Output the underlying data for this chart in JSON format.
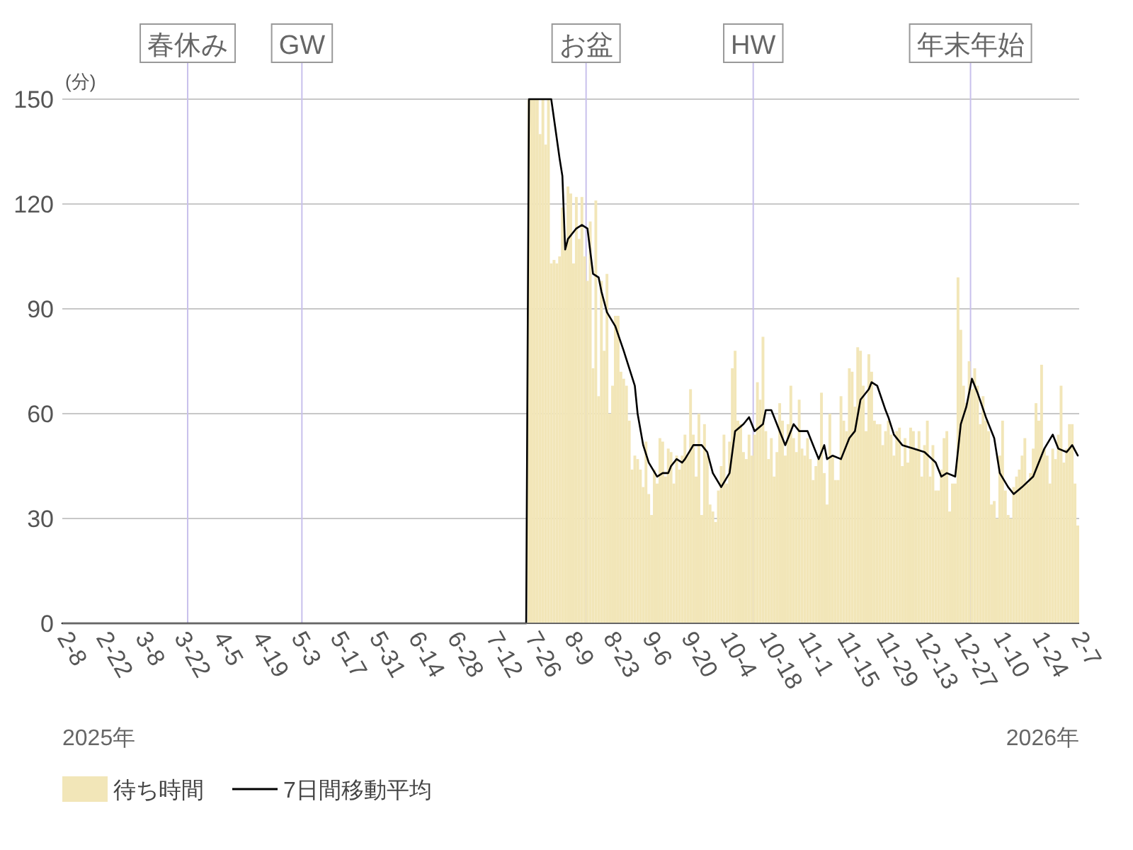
{
  "chart_data": {
    "type": "bar",
    "ylabel": "(分)",
    "xlim": [
      "2025-02-08",
      "2026-02-08"
    ],
    "ylim": [
      0,
      150
    ],
    "yticks": [
      0,
      30,
      60,
      90,
      120,
      150
    ],
    "xticks": [
      {
        "value": "2025-02-08",
        "label": "2-8"
      },
      {
        "value": "2025-02-22",
        "label": "2-22"
      },
      {
        "value": "2025-03-08",
        "label": "3-8"
      },
      {
        "value": "2025-03-22",
        "label": "3-22"
      },
      {
        "value": "2025-04-05",
        "label": "4-5"
      },
      {
        "value": "2025-04-19",
        "label": "4-19"
      },
      {
        "value": "2025-05-03",
        "label": "5-3"
      },
      {
        "value": "2025-05-17",
        "label": "5-17"
      },
      {
        "value": "2025-05-31",
        "label": "5-31"
      },
      {
        "value": "2025-06-14",
        "label": "6-14"
      },
      {
        "value": "2025-06-28",
        "label": "6-28"
      },
      {
        "value": "2025-07-12",
        "label": "7-12"
      },
      {
        "value": "2025-07-26",
        "label": "7-26"
      },
      {
        "value": "2025-08-09",
        "label": "8-9"
      },
      {
        "value": "2025-08-23",
        "label": "8-23"
      },
      {
        "value": "2025-09-06",
        "label": "9-6"
      },
      {
        "value": "2025-09-20",
        "label": "9-20"
      },
      {
        "value": "2025-10-04",
        "label": "10-4"
      },
      {
        "value": "2025-10-18",
        "label": "10-18"
      },
      {
        "value": "2025-11-01",
        "label": "11-1"
      },
      {
        "value": "2025-11-15",
        "label": "11-15"
      },
      {
        "value": "2025-11-29",
        "label": "11-29"
      },
      {
        "value": "2025-12-13",
        "label": "12-13"
      },
      {
        "value": "2025-12-27",
        "label": "12-27"
      },
      {
        "value": "2026-01-10",
        "label": "1-10"
      },
      {
        "value": "2026-01-24",
        "label": "1-24"
      },
      {
        "value": "2026-02-07",
        "label": "2-7"
      }
    ],
    "grid": "y",
    "legend": "bottom",
    "ref_lines": [
      {
        "axis": "x",
        "value": "2025-03-25",
        "label": "春休み",
        "color": "#c8c0ec"
      },
      {
        "axis": "x",
        "value": "2025-05-05",
        "label": "GW",
        "color": "#c8c0ec"
      },
      {
        "axis": "x",
        "value": "2025-08-15",
        "label": "お盆",
        "color": "#c8c0ec"
      },
      {
        "axis": "x",
        "value": "2025-10-14",
        "label": "HW",
        "color": "#c8c0ec"
      },
      {
        "axis": "x",
        "value": "2025-12-31",
        "label": "年末年始",
        "color": "#c8c0ec"
      }
    ],
    "annotations": [
      "2025年",
      "2026年"
    ],
    "series": [
      {
        "name": "待ち時間",
        "color": "#f2e6b8",
        "x": [
          "2025-07-25",
          "2025-07-26",
          "2025-07-27",
          "2025-07-28",
          "2025-07-29",
          "2025-07-30",
          "2025-07-31",
          "2025-08-01",
          "2025-08-02",
          "2025-08-03",
          "2025-08-04",
          "2025-08-05",
          "2025-08-06",
          "2025-08-07",
          "2025-08-08",
          "2025-08-09",
          "2025-08-10",
          "2025-08-11",
          "2025-08-12",
          "2025-08-13",
          "2025-08-14",
          "2025-08-15",
          "2025-08-16",
          "2025-08-17",
          "2025-08-18",
          "2025-08-19",
          "2025-08-20",
          "2025-08-21",
          "2025-08-22",
          "2025-08-23",
          "2025-08-24",
          "2025-08-25",
          "2025-08-26",
          "2025-08-27",
          "2025-08-28",
          "2025-08-29",
          "2025-08-30",
          "2025-08-31",
          "2025-09-01",
          "2025-09-02",
          "2025-09-03",
          "2025-09-04",
          "2025-09-05",
          "2025-09-06",
          "2025-09-07",
          "2025-09-08",
          "2025-09-09",
          "2025-09-10",
          "2025-09-11",
          "2025-09-12",
          "2025-09-13",
          "2025-09-14",
          "2025-09-15",
          "2025-09-16",
          "2025-09-17",
          "2025-09-18",
          "2025-09-19",
          "2025-09-20",
          "2025-09-21",
          "2025-09-22",
          "2025-09-23",
          "2025-09-24",
          "2025-09-25",
          "2025-09-26",
          "2025-09-27",
          "2025-09-28",
          "2025-09-29",
          "2025-09-30",
          "2025-10-01",
          "2025-10-02",
          "2025-10-03",
          "2025-10-04",
          "2025-10-05",
          "2025-10-06",
          "2025-10-07",
          "2025-10-08",
          "2025-10-09",
          "2025-10-10",
          "2025-10-11",
          "2025-10-12",
          "2025-10-13",
          "2025-10-14",
          "2025-10-15",
          "2025-10-16",
          "2025-10-17",
          "2025-10-18",
          "2025-10-19",
          "2025-10-20",
          "2025-10-21",
          "2025-10-22",
          "2025-10-23",
          "2025-10-24",
          "2025-10-25",
          "2025-10-26",
          "2025-10-27",
          "2025-10-28",
          "2025-10-29",
          "2025-10-30",
          "2025-10-31",
          "2025-11-01",
          "2025-11-02",
          "2025-11-03",
          "2025-11-04",
          "2025-11-05",
          "2025-11-06",
          "2025-11-07",
          "2025-11-08",
          "2025-11-09",
          "2025-11-10",
          "2025-11-11",
          "2025-11-12",
          "2025-11-13",
          "2025-11-14",
          "2025-11-15",
          "2025-11-16",
          "2025-11-17",
          "2025-11-18",
          "2025-11-19",
          "2025-11-20",
          "2025-11-21",
          "2025-11-22",
          "2025-11-23",
          "2025-11-24",
          "2025-11-25",
          "2025-11-26",
          "2025-11-27",
          "2025-11-28",
          "2025-11-29",
          "2025-11-30",
          "2025-12-01",
          "2025-12-02",
          "2025-12-03",
          "2025-12-04",
          "2025-12-05",
          "2025-12-06",
          "2025-12-07",
          "2025-12-08",
          "2025-12-09",
          "2025-12-10",
          "2025-12-11",
          "2025-12-12",
          "2025-12-13",
          "2025-12-14",
          "2025-12-15",
          "2025-12-16",
          "2025-12-17",
          "2025-12-18",
          "2025-12-19",
          "2025-12-20",
          "2025-12-21",
          "2025-12-22",
          "2025-12-23",
          "2025-12-24",
          "2025-12-25",
          "2025-12-26",
          "2025-12-27",
          "2025-12-28",
          "2025-12-29",
          "2025-12-30",
          "2025-12-31",
          "2026-01-01",
          "2026-01-02",
          "2026-01-03",
          "2026-01-04",
          "2026-01-05",
          "2026-01-06",
          "2026-01-07",
          "2026-01-08",
          "2026-01-09",
          "2026-01-10",
          "2026-01-11",
          "2026-01-12",
          "2026-01-13",
          "2026-01-14",
          "2026-01-15",
          "2026-01-16",
          "2026-01-17",
          "2026-01-18",
          "2026-01-19",
          "2026-01-20",
          "2026-01-21",
          "2026-01-22",
          "2026-01-23",
          "2026-01-24",
          "2026-01-25",
          "2026-01-26",
          "2026-01-27",
          "2026-01-28",
          "2026-01-29",
          "2026-01-30",
          "2026-01-31",
          "2026-02-01",
          "2026-02-02",
          "2026-02-03",
          "2026-02-04",
          "2026-02-05",
          "2026-02-06",
          "2026-02-07"
        ],
        "values": [
          150,
          150,
          150,
          150,
          140,
          150,
          137,
          150,
          103,
          104,
          103,
          105,
          119,
          107,
          125,
          123,
          103,
          122,
          110,
          122,
          105,
          98,
          115,
          73,
          121,
          65,
          98,
          78,
          100,
          60,
          68,
          88,
          88,
          72,
          70,
          68,
          58,
          44,
          48,
          47,
          44,
          39,
          52,
          37,
          31,
          44,
          40,
          53,
          52,
          42,
          50,
          49,
          40,
          48,
          44,
          48,
          54,
          48,
          67,
          54,
          42,
          60,
          31,
          57,
          48,
          34,
          32,
          29,
          38,
          45,
          54,
          40,
          52,
          73,
          78,
          58,
          57,
          49,
          47,
          54,
          48,
          54,
          69,
          64,
          82,
          55,
          47,
          53,
          42,
          49,
          63,
          58,
          48,
          57,
          68,
          53,
          49,
          64,
          50,
          48,
          53,
          47,
          41,
          45,
          47,
          66,
          43,
          34,
          60,
          48,
          41,
          41,
          65,
          58,
          55,
          73,
          72,
          62,
          79,
          78,
          68,
          55,
          77,
          72,
          58,
          57,
          57,
          51,
          55,
          58,
          54,
          48,
          55,
          56,
          45,
          53,
          46,
          56,
          55,
          50,
          55,
          42,
          51,
          58,
          42,
          51,
          38,
          38,
          44,
          53,
          55,
          32,
          40,
          40,
          99,
          84,
          68,
          63,
          75,
          67,
          73,
          68,
          57,
          65,
          58,
          55,
          34,
          35,
          30,
          48,
          58,
          38,
          31,
          30,
          39,
          42,
          44,
          48,
          53,
          40,
          43,
          50,
          63,
          58,
          74,
          50,
          48,
          40,
          50,
          47,
          54,
          68,
          46,
          50,
          57,
          57,
          40,
          28
        ]
      },
      {
        "name": "7日間移動平均",
        "type": "line",
        "color": "#000000",
        "x": [
          "2025-02-08",
          "2025-07-24",
          "2025-07-25",
          "2025-08-02",
          "2025-08-05",
          "2025-08-06",
          "2025-08-07",
          "2025-08-08",
          "2025-08-11",
          "2025-08-13",
          "2025-08-15",
          "2025-08-17",
          "2025-08-19",
          "2025-08-20",
          "2025-08-22",
          "2025-08-25",
          "2025-08-28",
          "2025-08-30",
          "2025-09-01",
          "2025-09-02",
          "2025-09-04",
          "2025-09-06",
          "2025-09-09",
          "2025-09-11",
          "2025-09-13",
          "2025-09-14",
          "2025-09-16",
          "2025-09-18",
          "2025-09-19",
          "2025-09-22",
          "2025-09-25",
          "2025-09-27",
          "2025-09-29",
          "2025-10-02",
          "2025-10-05",
          "2025-10-07",
          "2025-10-10",
          "2025-10-12",
          "2025-10-14",
          "2025-10-17",
          "2025-10-18",
          "2025-10-20",
          "2025-10-23",
          "2025-10-25",
          "2025-10-28",
          "2025-10-30",
          "2025-11-02",
          "2025-11-04",
          "2025-11-06",
          "2025-11-08",
          "2025-11-09",
          "2025-11-11",
          "2025-11-14",
          "2025-11-17",
          "2025-11-19",
          "2025-11-21",
          "2025-11-24",
          "2025-11-25",
          "2025-11-27",
          "2025-11-30",
          "2025-12-01",
          "2025-12-03",
          "2025-12-06",
          "2025-12-10",
          "2025-12-14",
          "2025-12-18",
          "2025-12-20",
          "2025-12-22",
          "2025-12-25",
          "2025-12-27",
          "2025-12-29",
          "2025-12-31",
          "2026-01-02",
          "2026-01-05",
          "2026-01-08",
          "2026-01-10",
          "2026-01-13",
          "2026-01-15",
          "2026-01-18",
          "2026-01-22",
          "2026-01-26",
          "2026-01-29",
          "2026-01-31",
          "2026-02-03",
          "2026-02-05",
          "2026-02-07"
        ],
        "values": [
          0,
          0,
          150,
          150,
          133,
          128,
          107,
          110,
          113,
          114,
          113,
          100,
          99,
          95,
          89,
          85,
          78,
          73,
          68,
          60,
          51,
          46,
          42,
          43,
          43,
          45,
          47,
          46,
          47,
          51,
          51,
          49,
          43,
          39,
          43,
          55,
          57,
          59,
          55,
          57,
          61,
          61,
          55,
          51,
          57,
          55,
          55,
          51,
          47,
          51,
          47,
          48,
          47,
          53,
          55,
          64,
          67,
          69,
          68,
          61,
          59,
          54,
          51,
          50,
          49,
          46,
          42,
          43,
          42,
          57,
          62,
          70,
          66,
          59,
          53,
          43,
          39,
          37,
          39,
          42,
          50,
          54,
          50,
          49,
          51,
          48
        ]
      }
    ]
  }
}
